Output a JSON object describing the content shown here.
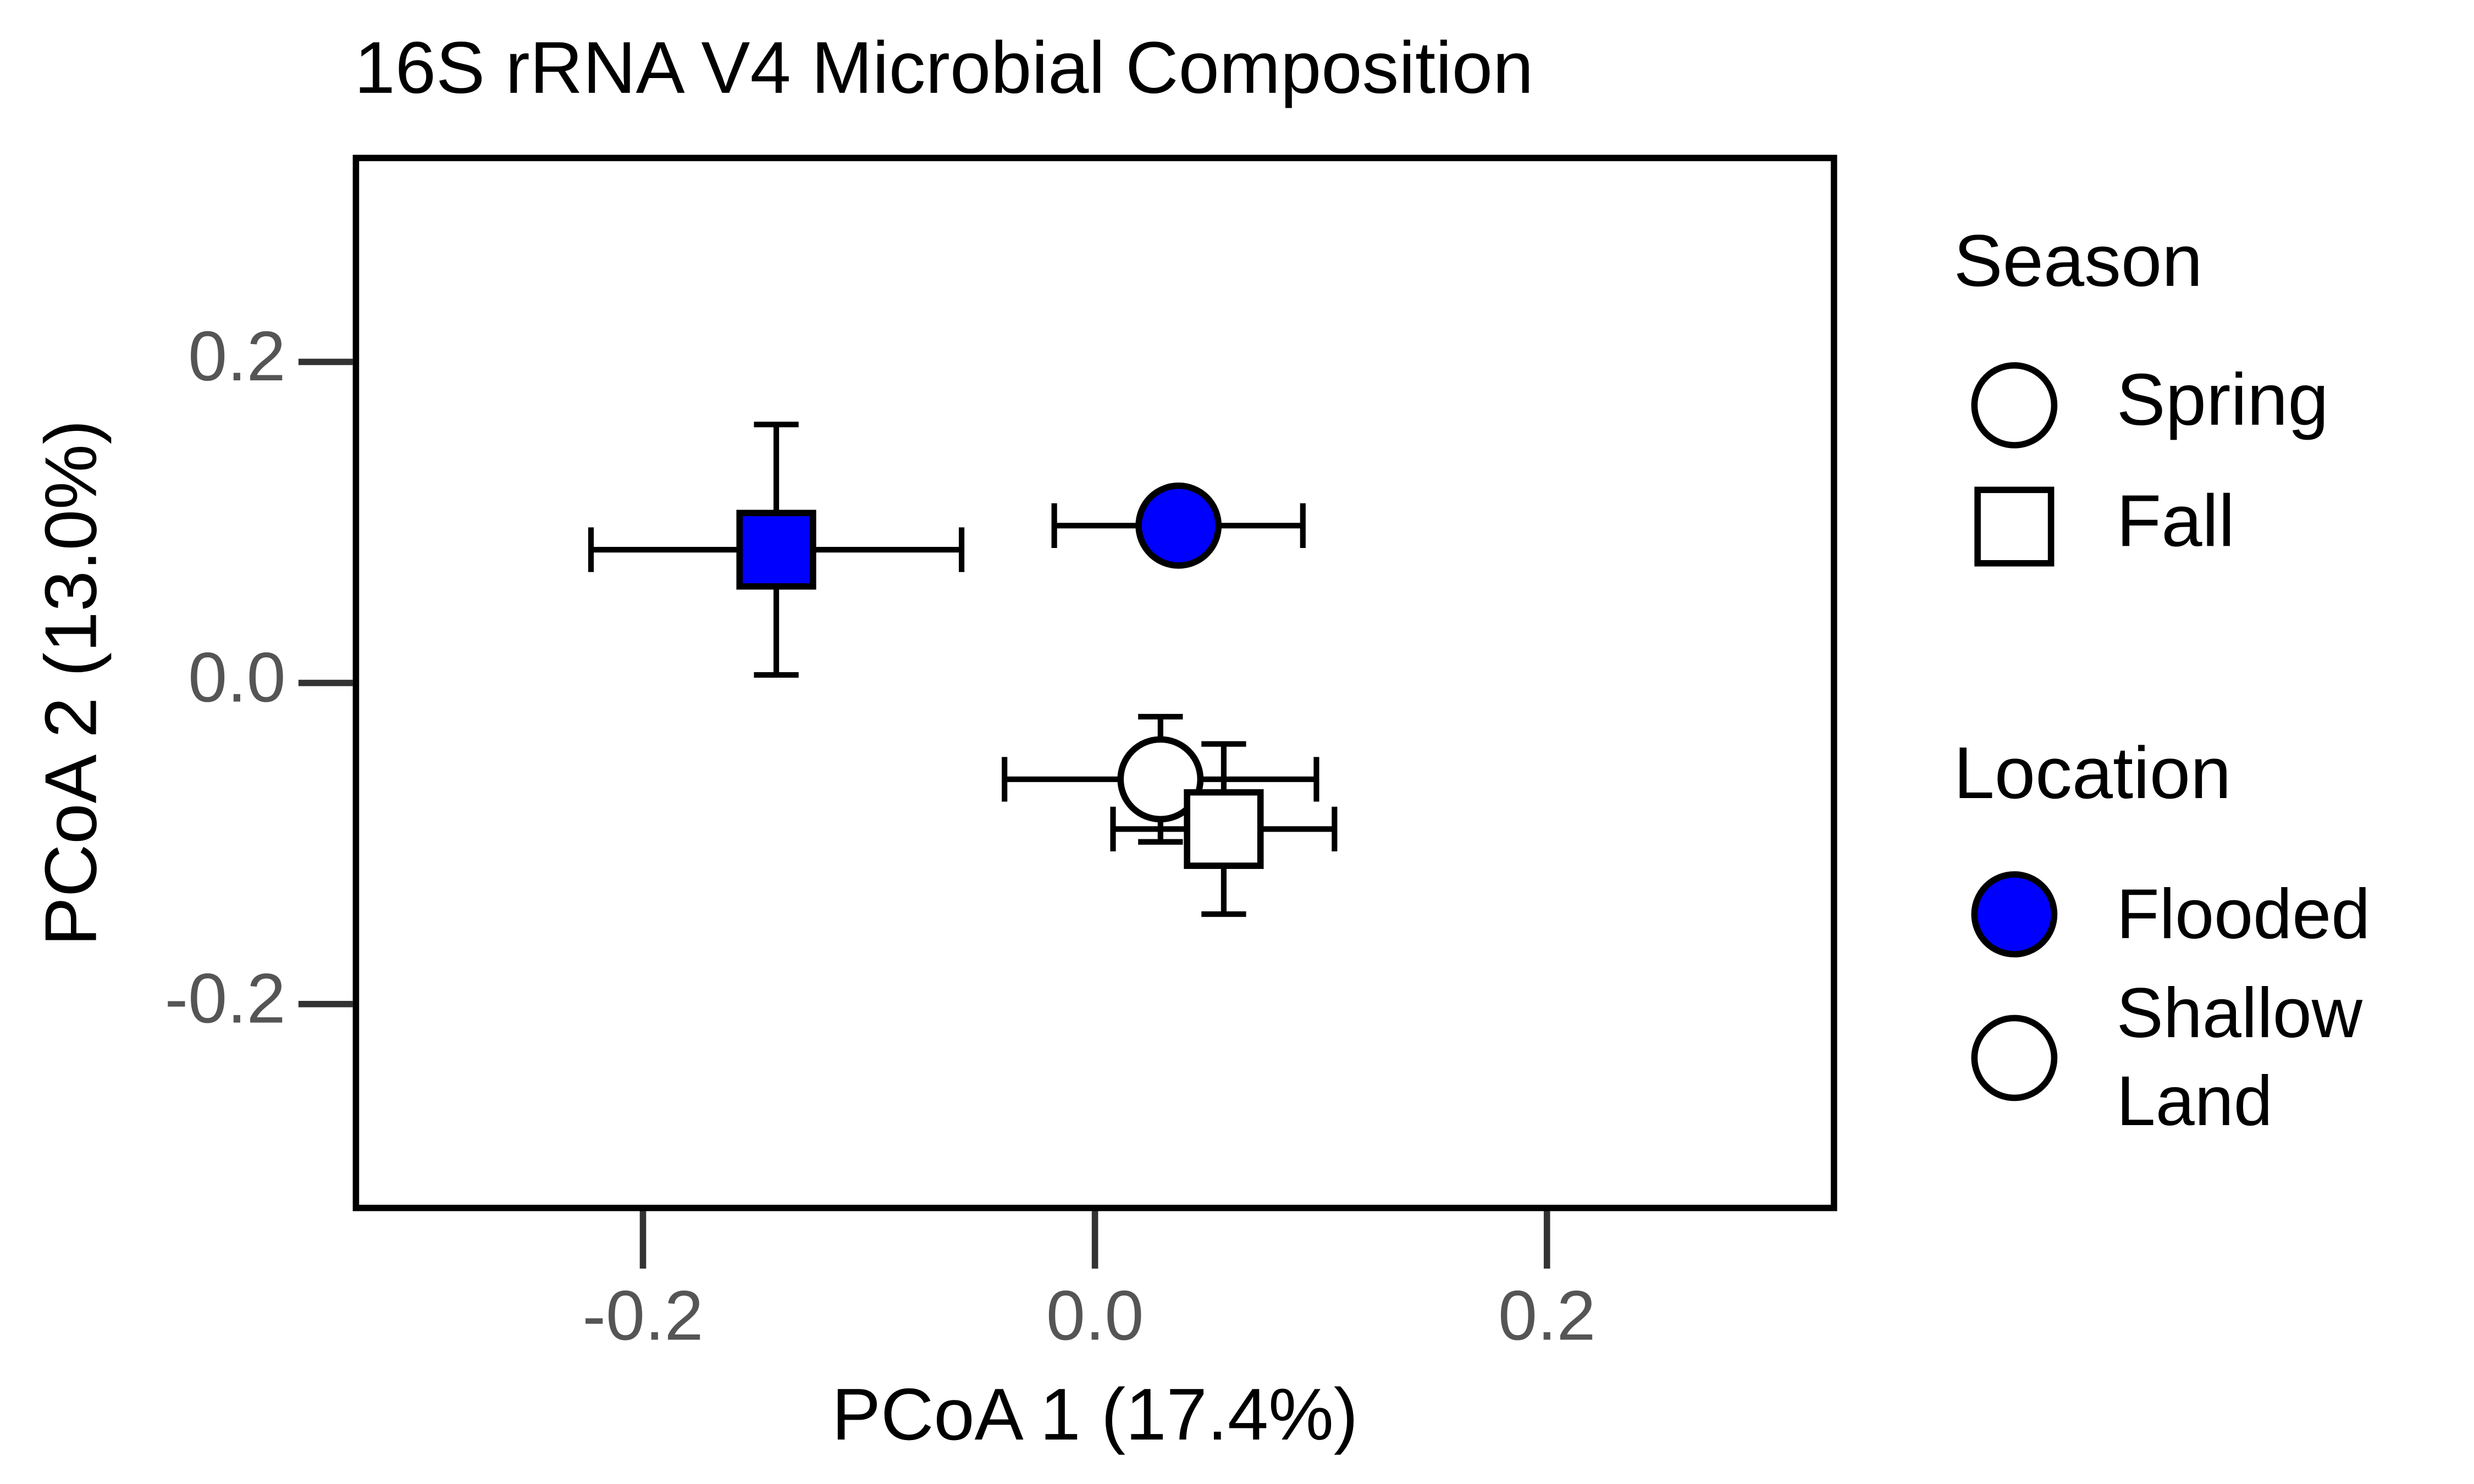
{
  "chart_data": {
    "type": "scatter",
    "title": "16S rRNA V4 Microbial Composition",
    "x_label": "PCoA 1 (17.4%)",
    "y_label": "PCoA 2 (13.0%)",
    "xlim": [
      -0.327,
      0.327
    ],
    "ylim": [
      -0.327,
      0.327
    ],
    "xticks": [
      -0.2,
      {
        "value": 0,
        "label": "0.0"
      },
      0.2
    ],
    "yticks": [
      -0.2,
      {
        "value": 0,
        "label": "0.0"
      },
      0.2
    ],
    "series": [
      {
        "marker": "square",
        "color": "#0000ff",
        "x": [
          -0.141
        ],
        "y": [
          0.083
        ],
        "xerr": [
          0.082
        ],
        "yerr": [
          0.078
        ]
      },
      {
        "marker": "circle",
        "color": "#0000ff",
        "x": [
          0.037
        ],
        "y": [
          0.098
        ],
        "xerr": [
          0.055
        ],
        "yerr": [
          0
        ]
      },
      {
        "marker": "circle",
        "color": "#ffffff",
        "x": [
          0.029
        ],
        "y": [
          -0.06
        ],
        "xerr": [
          0.069
        ],
        "yerr": [
          0.039
        ]
      },
      {
        "marker": "square",
        "color": "#ffffff",
        "x": [
          0.057
        ],
        "y": [
          -0.091
        ],
        "xerr": [
          0.049
        ],
        "yerr": [
          0.053
        ]
      }
    ],
    "legend": {
      "season": {
        "title": "Season",
        "items": [
          {
            "label": "Spring",
            "marker": "circle"
          },
          {
            "label": "Fall",
            "marker": "square"
          }
        ]
      },
      "location": {
        "title": "Location",
        "items": [
          {
            "label": "Flooded",
            "color": "#0000ff"
          },
          {
            "label": "Shallow Land",
            "color": "#ffffff"
          }
        ]
      }
    }
  }
}
